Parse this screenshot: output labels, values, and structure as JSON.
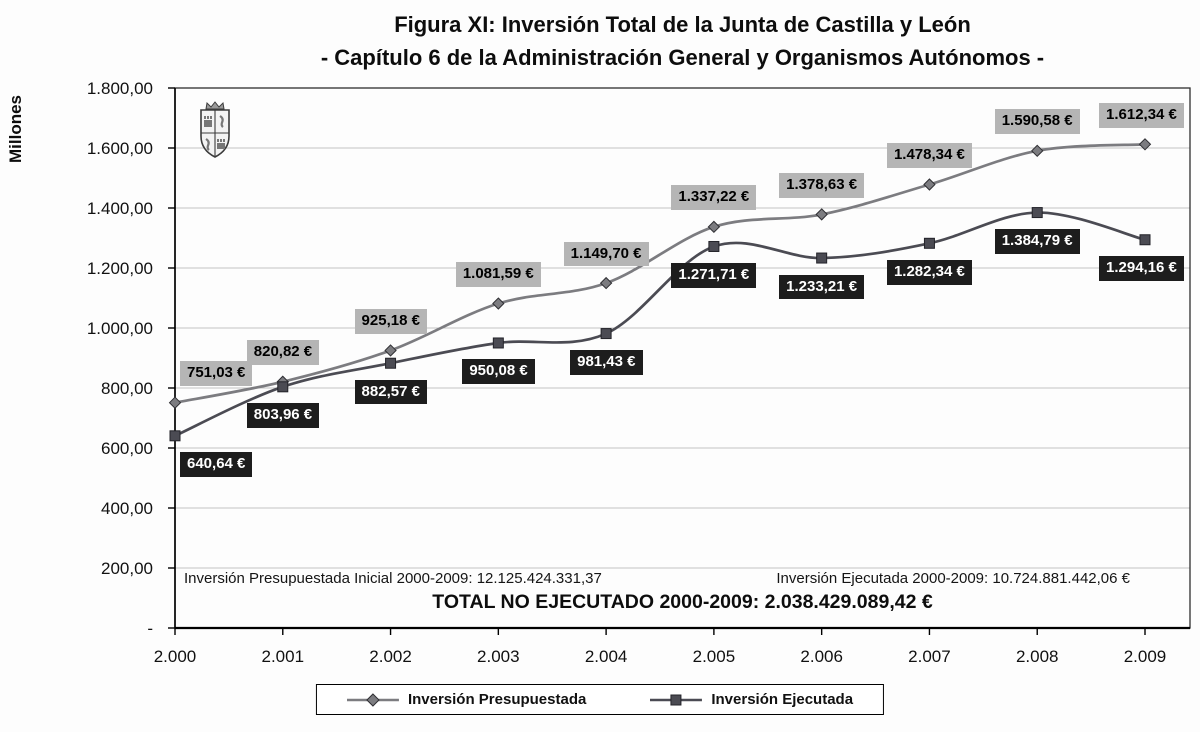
{
  "chart_data": {
    "type": "line",
    "title_lines": [
      "Figura XI: Inversión Total de la Junta de Castilla y León",
      "- Capítulo 6 de la Administración General y Organismos Autónomos -"
    ],
    "xlabel": "",
    "ylabel": "Millones",
    "ylim": [
      0,
      1800
    ],
    "grid": true,
    "grid_color": "#c2c2c2",
    "axis_color": "#000000",
    "legend_position": "bottom",
    "categories": [
      "2.000",
      "2.001",
      "2.002",
      "2.003",
      "2.004",
      "2.005",
      "2.006",
      "2.007",
      "2.008",
      "2.009"
    ],
    "y_ticks": [
      {
        "value": 1800,
        "label": "1.800,00"
      },
      {
        "value": 1600,
        "label": "1.600,00"
      },
      {
        "value": 1400,
        "label": "1.400,00"
      },
      {
        "value": 1200,
        "label": "1.200,00"
      },
      {
        "value": 1000,
        "label": "1.000,00"
      },
      {
        "value": 800,
        "label": "800,00"
      },
      {
        "value": 600,
        "label": "600,00"
      },
      {
        "value": 400,
        "label": "400,00"
      },
      {
        "value": 200,
        "label": "200,00"
      },
      {
        "value": 0,
        "label": "-"
      }
    ],
    "series": [
      {
        "name": "Inversión Presupuestada",
        "marker": "diamond",
        "color": "#7c7c80",
        "marker_stroke": "#2e2e32",
        "label_bg": "#b5b5b5",
        "label_color": "#000000",
        "values": [
          751.03,
          820.82,
          925.18,
          1081.59,
          1149.7,
          1337.22,
          1378.63,
          1478.34,
          1590.58,
          1612.34
        ],
        "labels": [
          "751,03 €",
          "820,82 €",
          "925,18 €",
          "1.081,59 €",
          "1.149,70 €",
          "1.337,22 €",
          "1.378,63 €",
          "1.478,34 €",
          "1.590,58 €",
          "1.612,34 €"
        ]
      },
      {
        "name": "Inversión Ejecutada",
        "marker": "square",
        "color": "#4b4b53",
        "marker_stroke": "#232329",
        "label_bg": "#1d1d1d",
        "label_color": "#ffffff",
        "values": [
          640.64,
          803.96,
          882.57,
          950.08,
          981.43,
          1271.71,
          1233.21,
          1282.34,
          1384.79,
          1294.16
        ],
        "labels": [
          "640,64 €",
          "803,96 €",
          "882,57 €",
          "950,08 €",
          "981,43 €",
          "1.271,71 €",
          "1.233,21 €",
          "1.282,34 €",
          "1.384,79 €",
          "1.294,16 €"
        ]
      }
    ],
    "annotations": {
      "left": "Inversión Presupuestada Inicial 2000-2009: 12.125.424.331,37",
      "right": "Inversión Ejecutada 2000-2009: 10.724.881.442,06 €",
      "total": "TOTAL NO EJECUTADO 2000-2009: 2.038.429.089,42 €"
    },
    "legend": [
      "Inversión Presupuestada",
      "Inversión Ejecutada"
    ]
  }
}
